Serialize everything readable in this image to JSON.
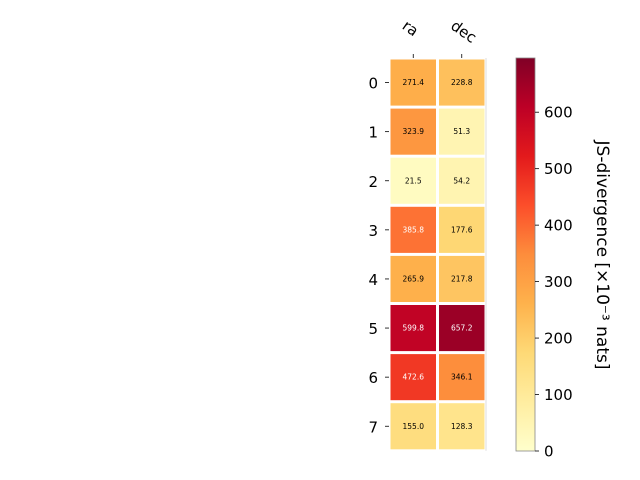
{
  "chart_data": {
    "type": "heatmap",
    "columns": [
      "ra",
      "dec"
    ],
    "rows": [
      "0",
      "1",
      "2",
      "3",
      "4",
      "5",
      "6",
      "7"
    ],
    "values": [
      [
        271.4,
        228.8
      ],
      [
        323.9,
        51.3
      ],
      [
        21.5,
        54.2
      ],
      [
        385.8,
        177.6
      ],
      [
        265.9,
        217.8
      ],
      [
        599.8,
        657.2
      ],
      [
        472.6,
        346.1
      ],
      [
        155.0,
        128.3
      ]
    ],
    "cell_labels": [
      [
        "271.4",
        "228.8"
      ],
      [
        "323.9",
        "51.3"
      ],
      [
        "21.5",
        "54.2"
      ],
      [
        "385.8",
        "177.6"
      ],
      [
        "265.9",
        "217.8"
      ],
      [
        "599.8",
        "657.2"
      ],
      [
        "472.6",
        "346.1"
      ],
      [
        "155.0",
        "128.3"
      ]
    ],
    "colorbar": {
      "label": "JS-divergence [×10⁻³ nats]",
      "range": [
        0,
        696
      ],
      "ticks": [
        0,
        100,
        200,
        300,
        400,
        500,
        600
      ],
      "tick_labels": [
        "0",
        "100",
        "200",
        "300",
        "400",
        "500",
        "600"
      ],
      "colormap": "YlOrRd"
    },
    "grid": false,
    "legend": "none"
  }
}
